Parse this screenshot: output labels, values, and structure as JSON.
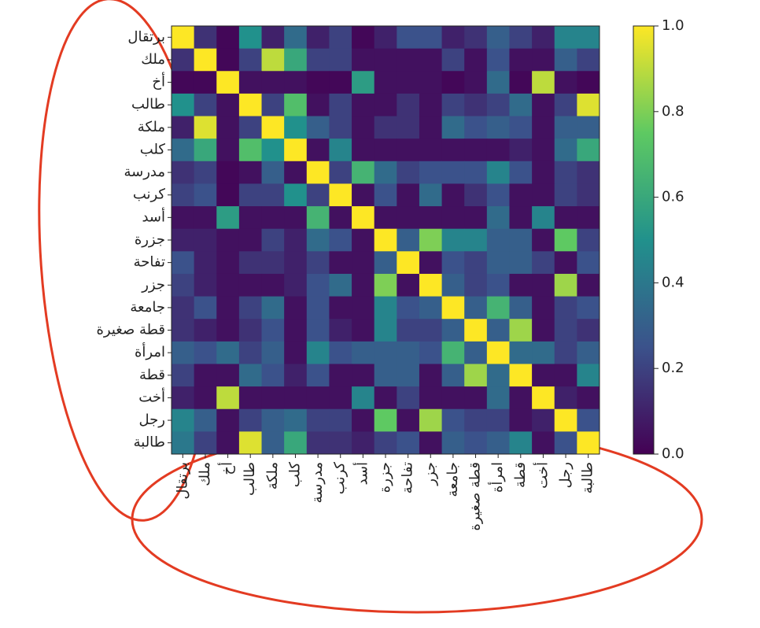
{
  "chart_data": {
    "type": "heatmap",
    "colormap": "viridis",
    "categories": [
      "برتقال",
      "ملك",
      "أخ",
      "طالب",
      "ملكة",
      "كلب",
      "مدرسة",
      "كرنب",
      "أسد",
      "جزرة",
      "تفاحة",
      "جزر",
      "جامعة",
      "قطة صغيرة",
      "امرأة",
      "قطة",
      "أخت",
      "رجل",
      "طالبة"
    ],
    "z": [
      [
        1,
        0.15,
        0.02,
        0.5,
        0.1,
        0.35,
        0.1,
        0.2,
        0.02,
        0.1,
        0.25,
        0.25,
        0.1,
        0.15,
        0.3,
        0.2,
        0.1,
        0.45,
        0.45
      ],
      [
        0.15,
        1,
        0.02,
        0.2,
        0.9,
        0.6,
        0.2,
        0.2,
        0.05,
        0.05,
        0.05,
        0.05,
        0.2,
        0.05,
        0.25,
        0.05,
        0.05,
        0.3,
        0.2
      ],
      [
        0.02,
        0.02,
        1,
        0.05,
        0.05,
        0.05,
        0.02,
        0.02,
        0.55,
        0.05,
        0.05,
        0.05,
        0.02,
        0.05,
        0.35,
        0.02,
        0.9,
        0.05,
        0.02
      ],
      [
        0.5,
        0.2,
        0.05,
        1,
        0.2,
        0.7,
        0.05,
        0.2,
        0.05,
        0.05,
        0.15,
        0.05,
        0.2,
        0.15,
        0.2,
        0.35,
        0.05,
        0.2,
        0.95
      ],
      [
        0.1,
        0.95,
        0.05,
        0.2,
        1,
        0.5,
        0.3,
        0.2,
        0.05,
        0.15,
        0.15,
        0.05,
        0.35,
        0.25,
        0.3,
        0.25,
        0.05,
        0.3,
        0.3
      ],
      [
        0.35,
        0.6,
        0.05,
        0.7,
        0.5,
        1,
        0.05,
        0.45,
        0.05,
        0.05,
        0.05,
        0.05,
        0.05,
        0.05,
        0.05,
        0.1,
        0.05,
        0.35,
        0.6
      ],
      [
        0.15,
        0.2,
        0.02,
        0.05,
        0.3,
        0.05,
        1,
        0.2,
        0.65,
        0.35,
        0.2,
        0.25,
        0.25,
        0.25,
        0.45,
        0.25,
        0.05,
        0.2,
        0.15
      ],
      [
        0.2,
        0.25,
        0.02,
        0.2,
        0.2,
        0.5,
        0.2,
        1,
        0.05,
        0.25,
        0.05,
        0.35,
        0.05,
        0.15,
        0.25,
        0.05,
        0.05,
        0.2,
        0.15
      ],
      [
        0.05,
        0.05,
        0.55,
        0.05,
        0.05,
        0.05,
        0.65,
        0.05,
        1,
        0.05,
        0.05,
        0.05,
        0.05,
        0.05,
        0.35,
        0.05,
        0.45,
        0.05,
        0.05
      ],
      [
        0.1,
        0.1,
        0.05,
        0.05,
        0.2,
        0.1,
        0.35,
        0.25,
        0.05,
        1,
        0.3,
        0.8,
        0.45,
        0.45,
        0.3,
        0.3,
        0.05,
        0.75,
        0.2
      ],
      [
        0.25,
        0.1,
        0.05,
        0.15,
        0.15,
        0.1,
        0.2,
        0.05,
        0.05,
        0.3,
        1,
        0.05,
        0.25,
        0.2,
        0.3,
        0.3,
        0.2,
        0.05,
        0.25
      ],
      [
        0.2,
        0.1,
        0.05,
        0.05,
        0.05,
        0.1,
        0.25,
        0.35,
        0.05,
        0.8,
        0.05,
        1,
        0.3,
        0.2,
        0.25,
        0.05,
        0.05,
        0.85,
        0.05
      ],
      [
        0.15,
        0.25,
        0.05,
        0.2,
        0.35,
        0.05,
        0.25,
        0.05,
        0.05,
        0.45,
        0.25,
        0.3,
        1,
        0.3,
        0.65,
        0.3,
        0.05,
        0.2,
        0.25
      ],
      [
        0.15,
        0.1,
        0.05,
        0.15,
        0.25,
        0.05,
        0.25,
        0.1,
        0.05,
        0.45,
        0.2,
        0.2,
        0.3,
        1,
        0.3,
        0.85,
        0.05,
        0.2,
        0.15
      ],
      [
        0.3,
        0.25,
        0.35,
        0.2,
        0.3,
        0.05,
        0.45,
        0.25,
        0.3,
        0.3,
        0.3,
        0.25,
        0.65,
        0.3,
        1,
        0.35,
        0.35,
        0.2,
        0.3
      ],
      [
        0.2,
        0.05,
        0.05,
        0.35,
        0.25,
        0.1,
        0.25,
        0.05,
        0.05,
        0.3,
        0.3,
        0.05,
        0.3,
        0.85,
        0.35,
        1,
        0.05,
        0.05,
        0.45
      ],
      [
        0.1,
        0.05,
        0.9,
        0.05,
        0.05,
        0.05,
        0.05,
        0.05,
        0.45,
        0.05,
        0.2,
        0.05,
        0.05,
        0.05,
        0.35,
        0.05,
        1,
        0.1,
        0.05
      ],
      [
        0.45,
        0.3,
        0.05,
        0.2,
        0.3,
        0.35,
        0.2,
        0.2,
        0.05,
        0.75,
        0.05,
        0.85,
        0.25,
        0.2,
        0.2,
        0.05,
        0.1,
        1,
        0.25
      ],
      [
        0.4,
        0.2,
        0.05,
        0.95,
        0.3,
        0.6,
        0.15,
        0.15,
        0.1,
        0.2,
        0.25,
        0.05,
        0.3,
        0.25,
        0.3,
        0.45,
        0.05,
        0.25,
        1
      ]
    ],
    "zlim": [
      0,
      1
    ],
    "zticks": [
      {
        "value": 0,
        "label": "0.0"
      },
      0.2,
      0.4,
      0.6,
      0.8,
      {
        "value": 1,
        "label": "1.0"
      }
    ]
  }
}
